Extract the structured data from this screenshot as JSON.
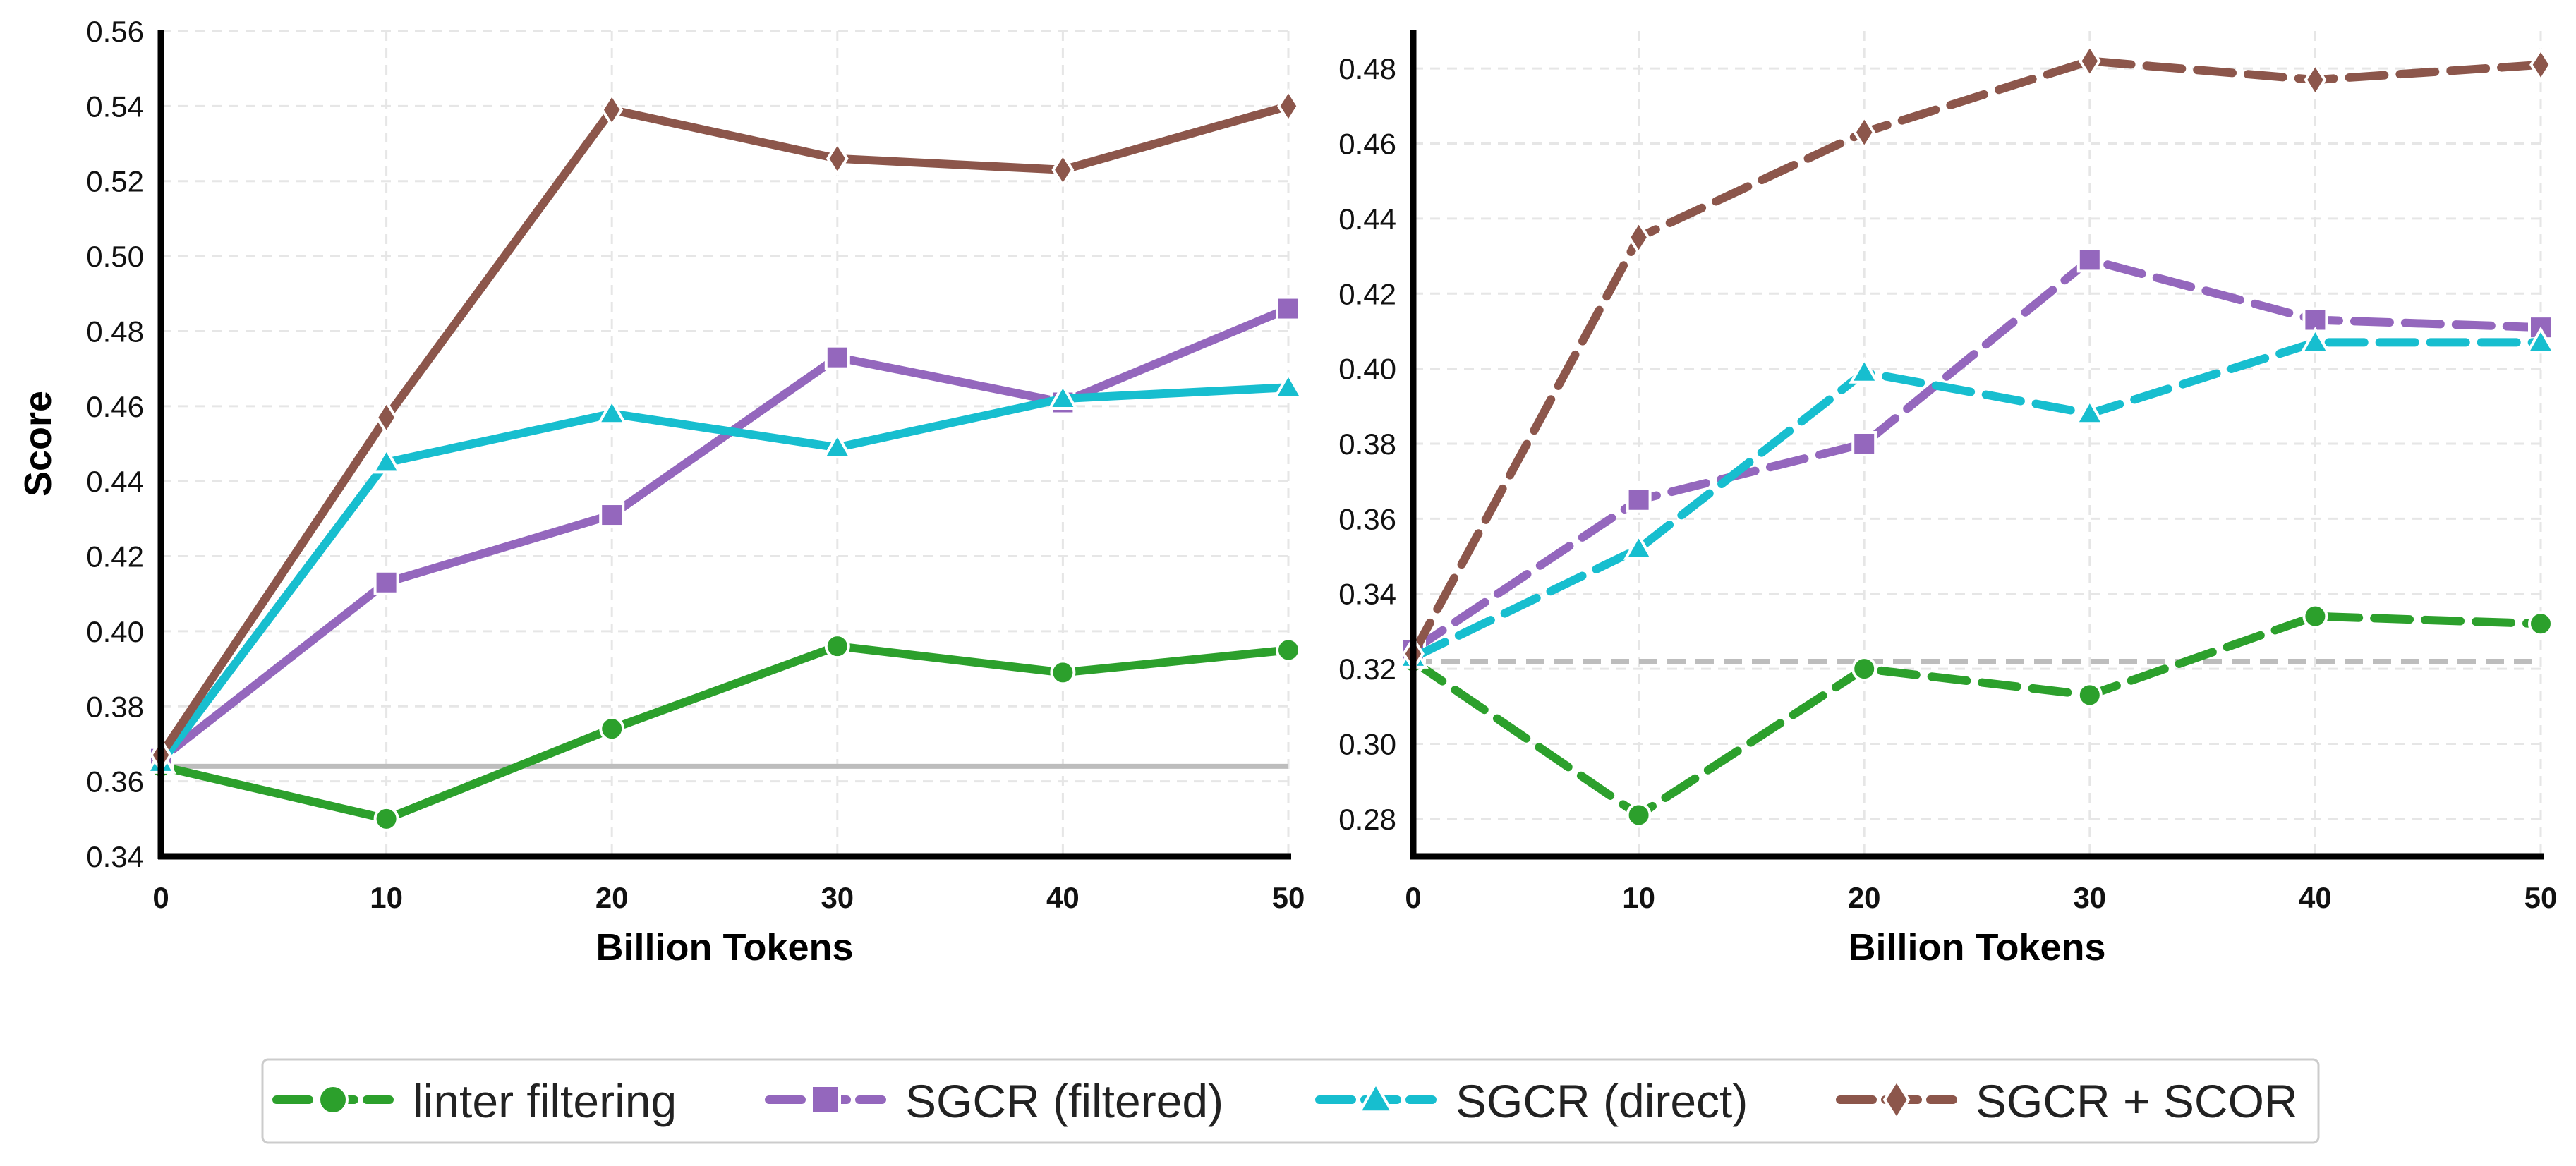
{
  "chart_data": [
    {
      "type": "line",
      "panel": "left",
      "title": "",
      "xlabel": "Billion Tokens",
      "ylabel": "Score",
      "xlim": [
        0,
        50
      ],
      "ylim": [
        0.34,
        0.56
      ],
      "x_ticks": [
        0,
        10,
        20,
        30,
        40,
        50
      ],
      "y_ticks": [
        0.34,
        0.36,
        0.38,
        0.4,
        0.42,
        0.44,
        0.46,
        0.48,
        0.5,
        0.52,
        0.54,
        0.56
      ],
      "grid": true,
      "line_style": "solid",
      "x": [
        0,
        10,
        20,
        30,
        40,
        50
      ],
      "baseline": 0.364,
      "series": [
        {
          "name": "linter filtering",
          "key": "linter",
          "values": [
            0.364,
            0.35,
            0.374,
            0.396,
            0.389,
            0.395
          ]
        },
        {
          "name": "SGCR (filtered)",
          "key": "filtered",
          "values": [
            0.366,
            0.413,
            0.431,
            0.473,
            0.461,
            0.486
          ]
        },
        {
          "name": "SGCR (direct)",
          "key": "direct",
          "values": [
            0.365,
            0.445,
            0.458,
            0.449,
            0.462,
            0.465
          ]
        },
        {
          "name": "SGCR + SCOR",
          "key": "scor",
          "values": [
            0.367,
            0.457,
            0.539,
            0.526,
            0.523,
            0.54
          ]
        }
      ]
    },
    {
      "type": "line",
      "panel": "right",
      "title": "",
      "xlabel": "Billion Tokens",
      "ylabel": "",
      "xlim": [
        0,
        50
      ],
      "ylim": [
        0.27,
        0.49
      ],
      "x_ticks": [
        0,
        10,
        20,
        30,
        40,
        50
      ],
      "y_ticks": [
        0.28,
        0.3,
        0.32,
        0.34,
        0.36,
        0.38,
        0.4,
        0.42,
        0.44,
        0.46,
        0.48
      ],
      "grid": true,
      "line_style": "dashed",
      "x": [
        0,
        10,
        20,
        30,
        40,
        50
      ],
      "baseline": 0.322,
      "series": [
        {
          "name": "linter filtering",
          "key": "linter",
          "values": [
            0.322,
            0.281,
            0.32,
            0.313,
            0.334,
            0.332
          ]
        },
        {
          "name": "SGCR (filtered)",
          "key": "filtered",
          "values": [
            0.325,
            0.365,
            0.38,
            0.429,
            0.413,
            0.411
          ]
        },
        {
          "name": "SGCR (direct)",
          "key": "direct",
          "values": [
            0.323,
            0.352,
            0.399,
            0.388,
            0.407,
            0.407
          ]
        },
        {
          "name": "SGCR + SCOR",
          "key": "scor",
          "values": [
            0.324,
            0.435,
            0.463,
            0.482,
            0.477,
            0.481
          ]
        }
      ]
    }
  ],
  "series_style": {
    "linter": {
      "color": "#2ca02c",
      "marker": "circle",
      "icon": "circle-marker-icon"
    },
    "filtered": {
      "color": "#9467bd",
      "marker": "square",
      "icon": "square-marker-icon"
    },
    "direct": {
      "color": "#17becf",
      "marker": "triangle",
      "icon": "triangle-marker-icon"
    },
    "scor": {
      "color": "#8c564b",
      "marker": "diamond",
      "icon": "diamond-marker-icon"
    }
  },
  "legend": {
    "position": "bottom-center",
    "items": [
      {
        "label": "linter filtering",
        "key": "linter"
      },
      {
        "label": "SGCR (filtered)",
        "key": "filtered"
      },
      {
        "label": "SGCR (direct)",
        "key": "direct"
      },
      {
        "label": "SGCR + SCOR",
        "key": "scor"
      }
    ]
  },
  "baseline_color": "#bdbdbd"
}
